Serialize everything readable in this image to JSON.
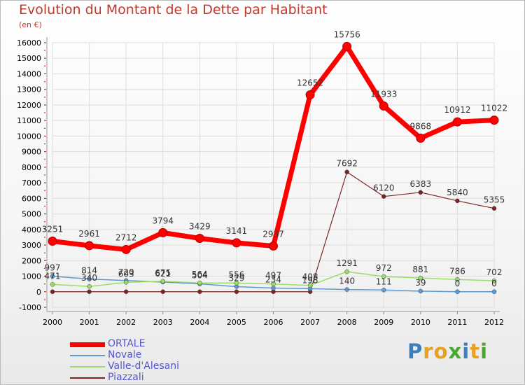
{
  "title": "Evolution du Montant de la Dette par Habitant",
  "subtitle": "(en €)",
  "logo": {
    "text": "Proxiti",
    "letters": [
      "P",
      "r",
      "o",
      "x",
      "i",
      "t",
      "i"
    ],
    "colors": [
      "#3a7fc1",
      "#e8a020",
      "#e8a020",
      "#4aa832",
      "#3a7fc1",
      "#e8a020",
      "#4aa832"
    ]
  },
  "chart_data": {
    "type": "line",
    "title": "Evolution du Montant de la Dette par Habitant",
    "ylabel": "(en €)",
    "xlabel": "",
    "ylim": [
      -1000,
      16000
    ],
    "grid": true,
    "legend": "bottom-left",
    "yticks": [
      -1000,
      0,
      1000,
      2000,
      3000,
      4000,
      5000,
      6000,
      7000,
      8000,
      9000,
      10000,
      11000,
      12000,
      13000,
      14000,
      15000,
      16000
    ],
    "categories": [
      "2000",
      "2001",
      "2002",
      "2003",
      "2004",
      "2005",
      "2006",
      "2007",
      "2008",
      "2009",
      "2010",
      "2011",
      "2012"
    ],
    "series": [
      {
        "name": "ORTALE",
        "color": "#ff0000",
        "width": 7,
        "marker": 6,
        "values": [
          3251,
          2961,
          2712,
          3794,
          3429,
          3141,
          2937,
          12652,
          15756,
          11933,
          9868,
          10912,
          11022
        ],
        "labels": [
          "3251",
          "2961",
          "2712",
          "3794",
          "3429",
          "3141",
          "2937",
          "12652",
          "15756",
          "11933",
          "9868",
          "10912",
          "11022"
        ]
      },
      {
        "name": "Novale",
        "color": "#5b9bd5",
        "width": 1.5,
        "marker": 3,
        "values": [
          997,
          814,
          720,
          621,
          504,
          329,
          234,
          198,
          140,
          111,
          39,
          0,
          0
        ],
        "labels": [
          "997",
          "814",
          "720",
          "621",
          "504",
          "329",
          "234",
          "198",
          "140",
          "111",
          "39",
          "0",
          "0"
        ]
      },
      {
        "name": "Valle-d'Alesani",
        "color": "#99dd66",
        "width": 1.5,
        "marker": 3,
        "values": [
          471,
          340,
          603,
          675,
          564,
          556,
          497,
          408,
          1291,
          972,
          881,
          786,
          702
        ],
        "labels": [
          "471",
          "340",
          "603",
          "675",
          "564",
          "556",
          "497",
          "408",
          "1291",
          "972",
          "881",
          "786",
          "702"
        ]
      },
      {
        "name": "Piazzali",
        "color": "#7b2424",
        "width": 1.2,
        "marker": 3,
        "values": [
          0,
          0,
          0,
          0,
          0,
          0,
          0,
          0,
          7692,
          6120,
          6383,
          5840,
          5355
        ],
        "labels": [
          "",
          "",
          "",
          "",
          "",
          "",
          "",
          "",
          "7692",
          "6120",
          "6383",
          "5840",
          "5355"
        ]
      }
    ]
  }
}
